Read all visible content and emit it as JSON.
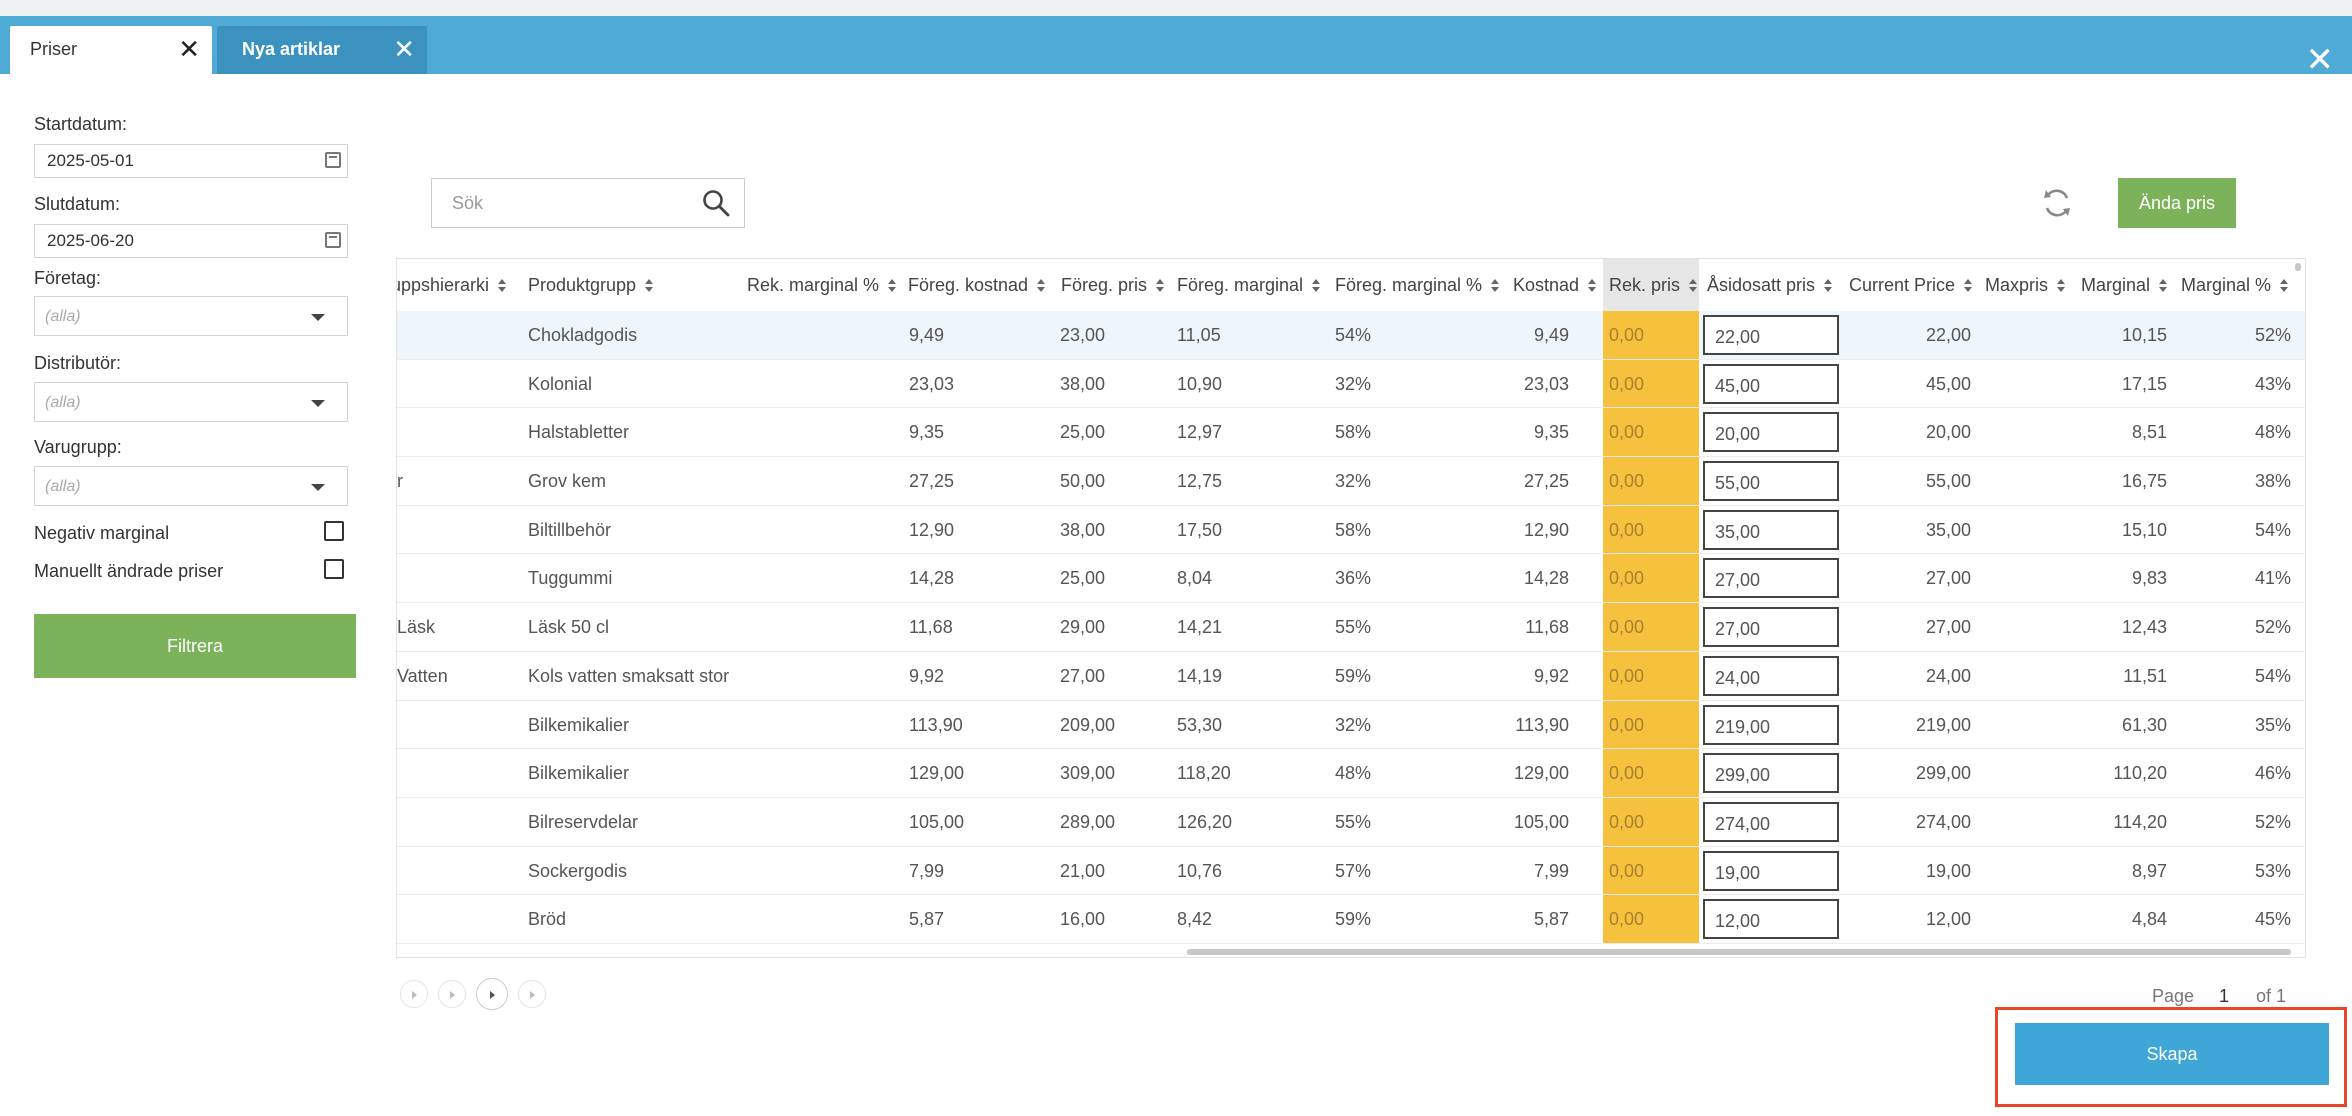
{
  "tabs": [
    {
      "label": "Priser",
      "active": true
    },
    {
      "label": "Nya artiklar",
      "active": false
    }
  ],
  "window": {
    "close_icon": "close-icon"
  },
  "filters": {
    "start_label": "Startdatum:",
    "start_value": "2025-05-01",
    "end_label": "Slutdatum:",
    "end_value": "2025-06-20",
    "company_label": "Företag:",
    "company_value": "(alla)",
    "distributor_label": "Distributör:",
    "distributor_value": "(alla)",
    "group_label": "Varugrupp:",
    "group_value": "(alla)",
    "neg_margin_label": "Negativ marginal",
    "manual_label": "Manuellt ändrade priser",
    "filter_button": "Filtrera"
  },
  "toolbar": {
    "search_placeholder": "Sök",
    "change_price_button": "Ända pris"
  },
  "table": {
    "headers": {
      "hier": "uppshierarki",
      "produktgrupp": "Produktgrupp",
      "rek_marginal": "Rek. marginal %",
      "foreg_kostnad": "Föreg. kostnad",
      "foreg_pris": "Föreg. pris",
      "foreg_marginal": "Föreg. marginal",
      "foreg_marginal_pct": "Föreg. marginal %",
      "kostnad": "Kostnad",
      "rek_pris": "Rek. pris",
      "asidosatt": "Åsidosatt pris",
      "current": "Current Price",
      "maxpris": "Maxpris",
      "marginal": "Marginal",
      "marginal_pct": "Marginal %"
    },
    "rows": [
      {
        "hier": "",
        "grupp": "Chokladgodis",
        "fk": "9,49",
        "fp": "23,00",
        "fm": "11,05",
        "fmp": "54%",
        "k": "9,49",
        "rek": "0,00",
        "as": "22,00",
        "cp": "22,00",
        "mx": "",
        "m": "10,15",
        "mp": "52%"
      },
      {
        "hier": "",
        "grupp": "Kolonial",
        "fk": "23,03",
        "fp": "38,00",
        "fm": "10,90",
        "fmp": "32%",
        "k": "23,03",
        "rek": "0,00",
        "as": "45,00",
        "cp": "45,00",
        "mx": "",
        "m": "17,15",
        "mp": "43%"
      },
      {
        "hier": "",
        "grupp": "Halstabletter",
        "fk": "9,35",
        "fp": "25,00",
        "fm": "12,97",
        "fmp": "58%",
        "k": "9,35",
        "rek": "0,00",
        "as": "20,00",
        "cp": "20,00",
        "mx": "",
        "m": "8,51",
        "mp": "48%"
      },
      {
        "hier": "r",
        "grupp": "Grov kem",
        "fk": "27,25",
        "fp": "50,00",
        "fm": "12,75",
        "fmp": "32%",
        "k": "27,25",
        "rek": "0,00",
        "as": "55,00",
        "cp": "55,00",
        "mx": "",
        "m": "16,75",
        "mp": "38%"
      },
      {
        "hier": "",
        "grupp": "Biltillbehör",
        "fk": "12,90",
        "fp": "38,00",
        "fm": "17,50",
        "fmp": "58%",
        "k": "12,90",
        "rek": "0,00",
        "as": "35,00",
        "cp": "35,00",
        "mx": "",
        "m": "15,10",
        "mp": "54%"
      },
      {
        "hier": "",
        "grupp": "Tuggummi",
        "fk": "14,28",
        "fp": "25,00",
        "fm": "8,04",
        "fmp": "36%",
        "k": "14,28",
        "rek": "0,00",
        "as": "27,00",
        "cp": "27,00",
        "mx": "",
        "m": "9,83",
        "mp": "41%"
      },
      {
        "hier": "Läsk",
        "grupp": "Läsk 50 cl",
        "fk": "11,68",
        "fp": "29,00",
        "fm": "14,21",
        "fmp": "55%",
        "k": "11,68",
        "rek": "0,00",
        "as": "27,00",
        "cp": "27,00",
        "mx": "",
        "m": "12,43",
        "mp": "52%"
      },
      {
        "hier": "Vatten",
        "grupp": "Kols vatten smaksatt stor",
        "fk": "9,92",
        "fp": "27,00",
        "fm": "14,19",
        "fmp": "59%",
        "k": "9,92",
        "rek": "0,00",
        "as": "24,00",
        "cp": "24,00",
        "mx": "",
        "m": "11,51",
        "mp": "54%"
      },
      {
        "hier": "",
        "grupp": "Bilkemikalier",
        "fk": "113,90",
        "fp": "209,00",
        "fm": "53,30",
        "fmp": "32%",
        "k": "113,90",
        "rek": "0,00",
        "as": "219,00",
        "cp": "219,00",
        "mx": "",
        "m": "61,30",
        "mp": "35%"
      },
      {
        "hier": "",
        "grupp": "Bilkemikalier",
        "fk": "129,00",
        "fp": "309,00",
        "fm": "118,20",
        "fmp": "48%",
        "k": "129,00",
        "rek": "0,00",
        "as": "299,00",
        "cp": "299,00",
        "mx": "",
        "m": "110,20",
        "mp": "46%"
      },
      {
        "hier": "",
        "grupp": "Bilreservdelar",
        "fk": "105,00",
        "fp": "289,00",
        "fm": "126,20",
        "fmp": "55%",
        "k": "105,00",
        "rek": "0,00",
        "as": "274,00",
        "cp": "274,00",
        "mx": "",
        "m": "114,20",
        "mp": "52%"
      },
      {
        "hier": "",
        "grupp": "Sockergodis",
        "fk": "7,99",
        "fp": "21,00",
        "fm": "10,76",
        "fmp": "57%",
        "k": "7,99",
        "rek": "0,00",
        "as": "19,00",
        "cp": "19,00",
        "mx": "",
        "m": "8,97",
        "mp": "53%"
      },
      {
        "hier": "",
        "grupp": "Bröd",
        "fk": "5,87",
        "fp": "16,00",
        "fm": "8,42",
        "fmp": "59%",
        "k": "5,87",
        "rek": "0,00",
        "as": "12,00",
        "cp": "12,00",
        "mx": "",
        "m": "4,84",
        "mp": "45%"
      }
    ]
  },
  "pager": {
    "page_label": "Page",
    "page_value": "1",
    "of_label": "of 1"
  },
  "actions": {
    "create_button": "Skapa"
  },
  "colors": {
    "header_blue": "#4fabd6",
    "green": "#7cb25a",
    "rek_yellow": "#f6c23e",
    "skapa_blue": "#3fa6d8",
    "highlight_red": "#e8452b"
  }
}
